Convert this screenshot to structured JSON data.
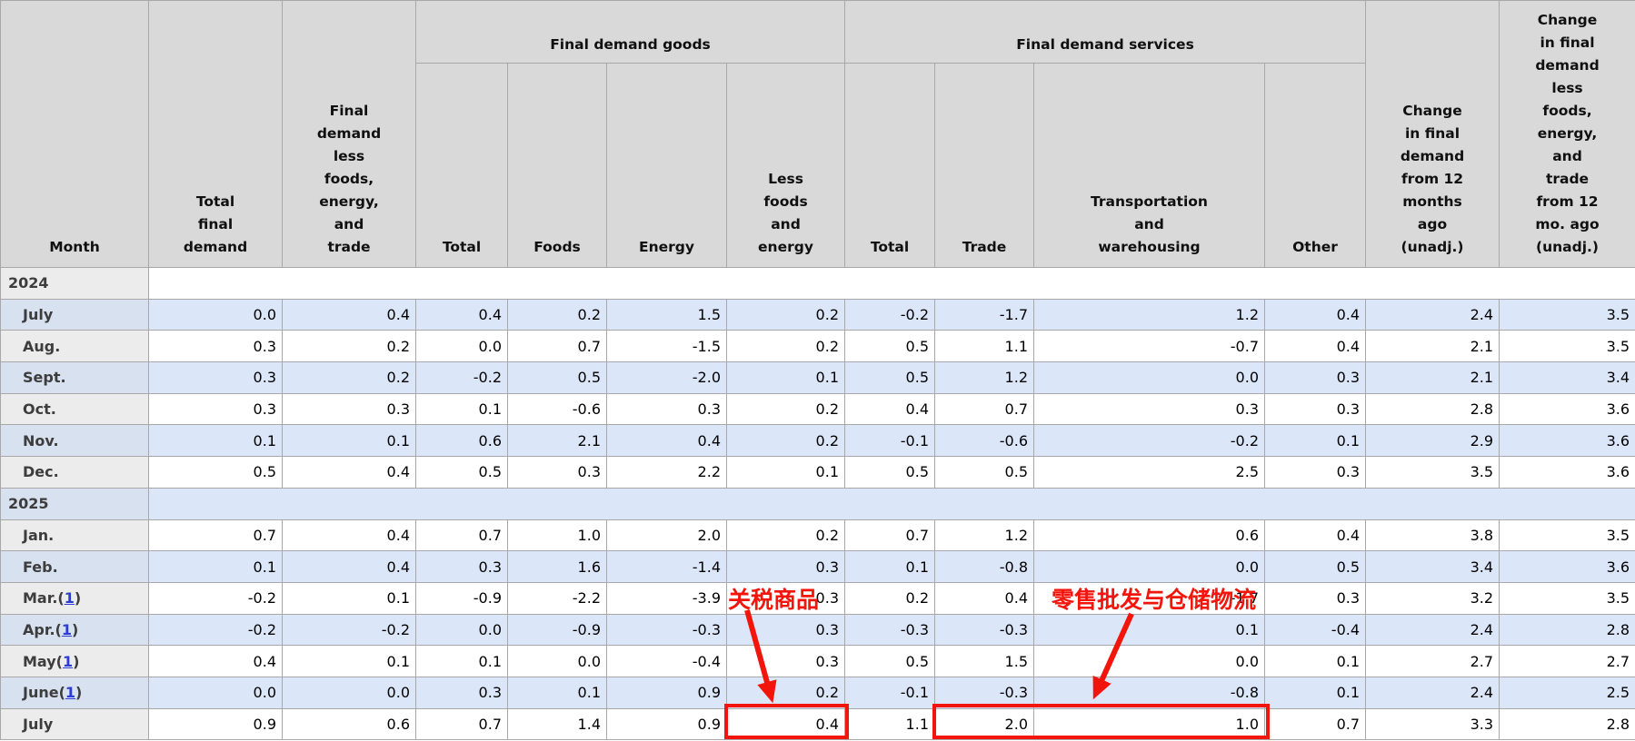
{
  "chart_data": {
    "type": "table",
    "header": {
      "month": "Month",
      "total_final_demand": "Total\nfinal\ndemand",
      "final_demand_less_fet": "Final\ndemand\nless\nfoods,\nenergy,\nand\ntrade",
      "goods_group": "Final demand goods",
      "goods_total": "Total",
      "goods_foods": "Foods",
      "goods_energy": "Energy",
      "goods_less_foods_energy": "Less\nfoods\nand\nenergy",
      "services_group": "Final demand services",
      "services_total": "Total",
      "services_trade": "Trade",
      "services_transportation": "Transportation\nand\nwarehousing",
      "services_other": "Other",
      "change_12mo": "Change\nin final\ndemand\nfrom 12\nmonths\nago\n(unadj.)",
      "change_less_12mo": "Change\nin final\ndemand\nless\nfoods,\nenergy,\nand\ntrade\nfrom 12\nmo. ago\n(unadj.)"
    },
    "value_columns": [
      "Total final demand",
      "Final demand less foods, energy, and trade",
      "Final demand goods: Total",
      "Final demand goods: Foods",
      "Final demand goods: Energy",
      "Final demand goods: Less foods and energy",
      "Final demand services: Total",
      "Final demand services: Trade",
      "Final demand services: Transportation and warehousing",
      "Final demand services: Other",
      "Change in final demand from 12 months ago (unadj.)",
      "Change in final demand less foods, energy, and trade from 12 mo. ago (unadj.)"
    ],
    "rows": [
      {
        "type": "year",
        "label": "2024",
        "footnote": "",
        "values": []
      },
      {
        "type": "month",
        "label": "July",
        "footnote": "",
        "values": [
          "0.0",
          "0.4",
          "0.4",
          "0.2",
          "1.5",
          "0.2",
          "-0.2",
          "-1.7",
          "1.2",
          "0.4",
          "2.4",
          "3.5"
        ]
      },
      {
        "type": "month",
        "label": "Aug.",
        "footnote": "",
        "values": [
          "0.3",
          "0.2",
          "0.0",
          "0.7",
          "-1.5",
          "0.2",
          "0.5",
          "1.1",
          "-0.7",
          "0.4",
          "2.1",
          "3.5"
        ]
      },
      {
        "type": "month",
        "label": "Sept.",
        "footnote": "",
        "values": [
          "0.3",
          "0.2",
          "-0.2",
          "0.5",
          "-2.0",
          "0.1",
          "0.5",
          "1.2",
          "0.0",
          "0.3",
          "2.1",
          "3.4"
        ]
      },
      {
        "type": "month",
        "label": "Oct.",
        "footnote": "",
        "values": [
          "0.3",
          "0.3",
          "0.1",
          "-0.6",
          "0.3",
          "0.2",
          "0.4",
          "0.7",
          "0.3",
          "0.3",
          "2.8",
          "3.6"
        ]
      },
      {
        "type": "month",
        "label": "Nov.",
        "footnote": "",
        "values": [
          "0.1",
          "0.1",
          "0.6",
          "2.1",
          "0.4",
          "0.2",
          "-0.1",
          "-0.6",
          "-0.2",
          "0.1",
          "2.9",
          "3.6"
        ]
      },
      {
        "type": "month",
        "label": "Dec.",
        "footnote": "",
        "values": [
          "0.5",
          "0.4",
          "0.5",
          "0.3",
          "2.2",
          "0.1",
          "0.5",
          "0.5",
          "2.5",
          "0.3",
          "3.5",
          "3.6"
        ]
      },
      {
        "type": "year",
        "label": "2025",
        "footnote": "",
        "values": []
      },
      {
        "type": "month",
        "label": "Jan.",
        "footnote": "",
        "values": [
          "0.7",
          "0.4",
          "0.7",
          "1.0",
          "2.0",
          "0.2",
          "0.7",
          "1.2",
          "0.6",
          "0.4",
          "3.8",
          "3.5"
        ]
      },
      {
        "type": "month",
        "label": "Feb.",
        "footnote": "",
        "values": [
          "0.1",
          "0.4",
          "0.3",
          "1.6",
          "-1.4",
          "0.3",
          "0.1",
          "-0.8",
          "0.0",
          "0.5",
          "3.4",
          "3.6"
        ]
      },
      {
        "type": "month",
        "label": "Mar.",
        "footnote": "1",
        "values": [
          "-0.2",
          "0.1",
          "-0.9",
          "-2.2",
          "-3.9",
          "0.3",
          "0.2",
          "0.4",
          "-1.7",
          "0.3",
          "3.2",
          "3.5"
        ]
      },
      {
        "type": "month",
        "label": "Apr.",
        "footnote": "1",
        "values": [
          "-0.2",
          "-0.2",
          "0.0",
          "-0.9",
          "-0.3",
          "0.3",
          "-0.3",
          "-0.3",
          "0.1",
          "-0.4",
          "2.4",
          "2.8"
        ]
      },
      {
        "type": "month",
        "label": "May",
        "footnote": "1",
        "values": [
          "0.4",
          "0.1",
          "0.1",
          "0.0",
          "-0.4",
          "0.3",
          "0.5",
          "1.5",
          "0.0",
          "0.1",
          "2.7",
          "2.7"
        ]
      },
      {
        "type": "month",
        "label": "June",
        "footnote": "1",
        "values": [
          "0.0",
          "0.0",
          "0.3",
          "0.1",
          "0.9",
          "0.2",
          "-0.1",
          "-0.3",
          "-0.8",
          "0.1",
          "2.4",
          "2.5"
        ]
      },
      {
        "type": "month",
        "label": "July",
        "footnote": "",
        "values": [
          "0.9",
          "0.6",
          "0.7",
          "1.4",
          "0.9",
          "0.4",
          "1.1",
          "2.0",
          "1.0",
          "0.7",
          "3.3",
          "2.8"
        ]
      }
    ]
  },
  "annotations": {
    "tariff_text": "关税商品",
    "logistics_text": "零售批发与仓储物流",
    "highlight_color": "#f2150b"
  },
  "colors": {
    "header_bg": "#d9d9d9",
    "row_blue": "#dbe6f9",
    "row_blue_month": "#d8e1f0",
    "row_white_month": "#ececec",
    "border": "#a8a8a8",
    "footnote_link": "#2b3cd6",
    "month_text": "#3d3d3d",
    "annotation_red": "#f2150b"
  }
}
